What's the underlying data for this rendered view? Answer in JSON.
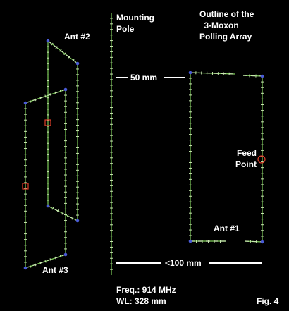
{
  "labels": {
    "title_line1": "Outline of the",
    "title_line2": "3-Moxon",
    "title_line3": "Polling Array",
    "mast_line1": "Mounting",
    "mast_line2": "Pole",
    "ant2": "Ant #2",
    "ant3": "Ant #3",
    "ant1": "Ant #1",
    "gap_50": "50 mm",
    "gap_100": "<100 mm",
    "feed_line1": "Feed",
    "feed_line2": "Point",
    "freq": "Freq.:  914 MHz",
    "wl": "WL: 328 mm",
    "fig": "Fig. 4"
  },
  "colors": {
    "background": "#000000",
    "text": "#ffffff",
    "wire": "#7fcf5a",
    "wire_dash": "#c8e6b0",
    "node": "#4a5bd6",
    "feed_marker": "#e0402a"
  }
}
